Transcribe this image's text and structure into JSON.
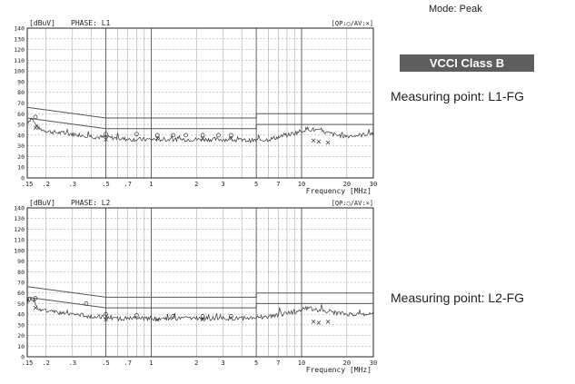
{
  "mode_text": "Mode: Peak",
  "badge_text": "VCCI Class B",
  "measuring_point_1": "Measuring point: L1-FG",
  "measuring_point_2": "Measuring point: L2-FG",
  "colors": {
    "badge_bg": "#5e5e5e",
    "trace": "#333333",
    "limit": "#555555",
    "grid": "#999999"
  },
  "chart_data": [
    {
      "type": "line",
      "unit_label": "[dBuV]",
      "phase_label": "PHASE: L1",
      "legend_text": "[QP:○/AV:×]",
      "xlabel": "Frequency [MHz]",
      "x_scale": "log",
      "xlim": [
        0.15,
        30
      ],
      "ylim": [
        0,
        140
      ],
      "y_ticks": [
        "140",
        "130",
        "120",
        "110",
        "100",
        "90",
        "80",
        "70",
        "60",
        "50",
        "40",
        "30",
        "20",
        "10",
        "0"
      ],
      "x_ticks": [
        {
          "value": 0.15,
          "label": ".15"
        },
        {
          "value": 0.2,
          "label": ".2"
        },
        {
          "value": 0.3,
          "label": ".3"
        },
        {
          "value": 0.5,
          "label": ".5"
        },
        {
          "value": 0.7,
          "label": ".7"
        },
        {
          "value": 1,
          "label": "1"
        },
        {
          "value": 2,
          "label": "2"
        },
        {
          "value": 3,
          "label": "3"
        },
        {
          "value": 5,
          "label": "5"
        },
        {
          "value": 7,
          "label": "7"
        },
        {
          "value": 10,
          "label": "10"
        },
        {
          "value": 20,
          "label": "20"
        },
        {
          "value": 30,
          "label": "30"
        }
      ],
      "grid": true,
      "series": [
        {
          "role": "qp_limit",
          "x": [
            0.15,
            0.5,
            0.5,
            5,
            5,
            30
          ],
          "y": [
            66,
            56,
            56,
            56,
            60,
            60
          ]
        },
        {
          "role": "av_limit",
          "x": [
            0.15,
            0.5,
            0.5,
            5,
            5,
            30
          ],
          "y": [
            56,
            46,
            46,
            46,
            50,
            50
          ]
        },
        {
          "role": "peak_trace",
          "x": [
            0.15,
            0.16,
            0.17,
            0.18,
            0.2,
            0.22,
            0.25,
            0.3,
            0.35,
            0.4,
            0.45,
            0.5,
            0.6,
            0.7,
            0.8,
            0.9,
            1,
            1.5,
            2,
            3,
            4,
            5,
            6,
            7,
            8,
            9,
            10,
            11,
            12,
            13,
            15,
            17,
            20,
            25,
            30
          ],
          "y": [
            52,
            56,
            50,
            46,
            44,
            43,
            42,
            41,
            40,
            39,
            38,
            38,
            37,
            36,
            36,
            36,
            36,
            36,
            36,
            36,
            35,
            35,
            36,
            38,
            40,
            42,
            44,
            46,
            45,
            44,
            42,
            40,
            39,
            40,
            42
          ]
        },
        {
          "role": "qp_markers",
          "x": [
            0.17,
            0.5,
            0.8,
            1.1,
            1.4,
            1.7,
            2.2,
            2.8,
            3.4
          ],
          "y": [
            57,
            41,
            41,
            40,
            40,
            40,
            40,
            40,
            40
          ]
        },
        {
          "role": "av_markers",
          "x": [
            0.17,
            0.5,
            1.1,
            2.2,
            3.4,
            12,
            13,
            15
          ],
          "y": [
            47,
            36,
            37,
            37,
            37,
            35,
            34,
            33
          ]
        }
      ]
    },
    {
      "type": "line",
      "unit_label": "[dBuV]",
      "phase_label": "PHASE: L2",
      "legend_text": "[QP:○/AV:×]",
      "xlabel": "Frequency [MHz]",
      "x_scale": "log",
      "xlim": [
        0.15,
        30
      ],
      "ylim": [
        0,
        140
      ],
      "y_ticks": [
        "140",
        "130",
        "120",
        "110",
        "100",
        "90",
        "80",
        "70",
        "60",
        "50",
        "40",
        "30",
        "20",
        "10",
        "0"
      ],
      "x_ticks": [
        {
          "value": 0.15,
          "label": ".15"
        },
        {
          "value": 0.2,
          "label": ".2"
        },
        {
          "value": 0.3,
          "label": ".3"
        },
        {
          "value": 0.5,
          "label": ".5"
        },
        {
          "value": 0.7,
          "label": ".7"
        },
        {
          "value": 1,
          "label": "1"
        },
        {
          "value": 2,
          "label": "2"
        },
        {
          "value": 3,
          "label": "3"
        },
        {
          "value": 5,
          "label": "5"
        },
        {
          "value": 7,
          "label": "7"
        },
        {
          "value": 10,
          "label": "10"
        },
        {
          "value": 20,
          "label": "20"
        },
        {
          "value": 30,
          "label": "30"
        }
      ],
      "grid": true,
      "series": [
        {
          "role": "qp_limit",
          "x": [
            0.15,
            0.5,
            0.5,
            5,
            5,
            30
          ],
          "y": [
            66,
            56,
            56,
            56,
            60,
            60
          ]
        },
        {
          "role": "av_limit",
          "x": [
            0.15,
            0.5,
            0.5,
            5,
            5,
            30
          ],
          "y": [
            56,
            46,
            46,
            46,
            50,
            50
          ]
        },
        {
          "role": "peak_trace",
          "x": [
            0.15,
            0.16,
            0.17,
            0.18,
            0.2,
            0.22,
            0.25,
            0.3,
            0.35,
            0.4,
            0.45,
            0.5,
            0.6,
            0.7,
            0.8,
            0.9,
            1,
            1.5,
            2,
            3,
            4,
            5,
            6,
            7,
            8,
            9,
            10,
            11,
            12,
            13,
            15,
            17,
            20,
            25,
            30
          ],
          "y": [
            50,
            55,
            49,
            45,
            43,
            42,
            41,
            40,
            39,
            38,
            38,
            37,
            36,
            36,
            36,
            36,
            36,
            36,
            36,
            36,
            36,
            37,
            38,
            39,
            41,
            42,
            44,
            46,
            45,
            44,
            43,
            41,
            40,
            40,
            41
          ]
        },
        {
          "role": "qp_markers",
          "x": [
            0.17,
            0.37,
            0.5,
            0.8,
            1.4,
            2.2,
            3.4
          ],
          "y": [
            55,
            50,
            40,
            39,
            38,
            38,
            38
          ]
        },
        {
          "role": "av_markers",
          "x": [
            0.17,
            0.5,
            1.1,
            2.2,
            12,
            13,
            15
          ],
          "y": [
            46,
            35,
            35,
            35,
            33,
            32,
            33
          ]
        }
      ]
    }
  ]
}
